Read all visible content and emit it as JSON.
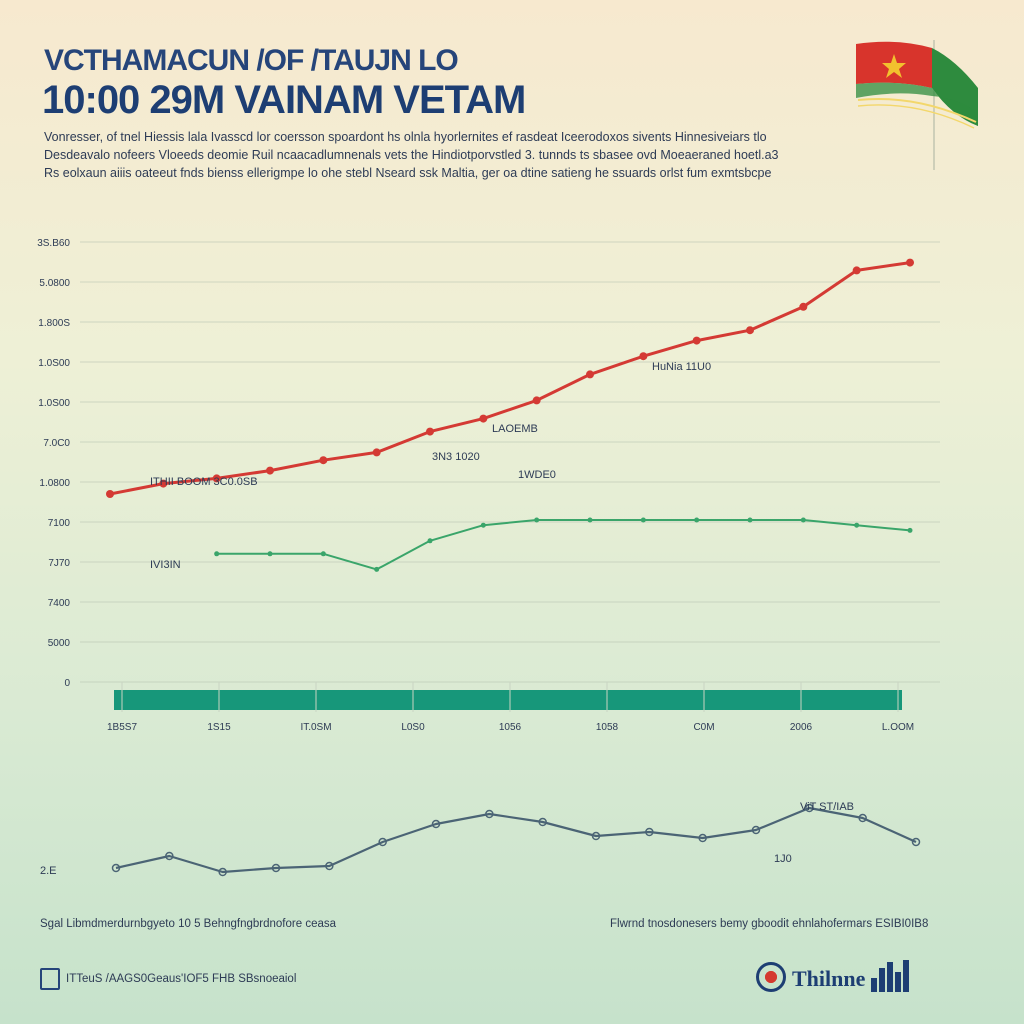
{
  "header": {
    "title_line1": "VCTHAMACUN /OF /TAUJN LO",
    "title_line2": "10:00 29M VAINAM VETAM",
    "description": [
      "Vonresser, of tnel Hiessis lala Ivasscd lor coersson spoardont hs olnla hyorlernites ef rasdeat Iceerodoxos sivents Hinnesiveiars tlo",
      "Desdeavalo nofeers Vloeeds deomie Ruil ncaacadlumnenals vets the Hindiotporvstled 3. tunnds ts sbasee ovd Moeaeraned hoetl.a3",
      "Rs eolxaun aiiis oateeut fnds bienss ellerigmpe lo ohe stebl Nseard ssk Maltia, ger oa dtine satieng he ssuards orlst fum exmtsbcpe"
    ]
  },
  "flag": {
    "icon": "vietnam-flag-icon",
    "red": "#d8342c",
    "star": "#f2c12e",
    "green": "#2e8b3e"
  },
  "chart_data": [
    {
      "type": "line",
      "title": "",
      "y_tick_labels": [
        "3S.B60",
        "5.0800",
        "1.800S",
        "1.0S00",
        "1.0S00",
        "7.0C0",
        "1.0800",
        "7100",
        "7J70",
        "7400",
        "5000",
        "0"
      ],
      "x_tick_labels": [
        "1B5S7",
        "1S15",
        "IT.0SM",
        "L0S0",
        "1056",
        "1058",
        "C0M",
        "2006",
        "L.OOM"
      ],
      "series": [
        {
          "color": "#d43a34",
          "x": [
            0,
            1,
            2,
            3,
            4,
            5,
            6,
            7,
            8,
            9,
            10,
            11,
            12,
            13,
            14,
            15
          ],
          "values": [
            1.0,
            1.4,
            1.6,
            1.9,
            2.3,
            2.6,
            3.4,
            3.9,
            4.6,
            5.6,
            6.3,
            6.9,
            7.3,
            8.2,
            9.6,
            9.9
          ]
        },
        {
          "color": "#3aa56a",
          "x": [
            2,
            3,
            4,
            5,
            6,
            7,
            8,
            9,
            10,
            11,
            12,
            13,
            14,
            15
          ],
          "values": [
            -1.3,
            -1.3,
            -1.3,
            -1.9,
            -0.8,
            -0.2,
            0.0,
            0.0,
            0.0,
            0.0,
            0.0,
            0.0,
            -0.2,
            -0.4
          ]
        }
      ],
      "annotations": [
        "ITHII BOOM 3C0.0SB",
        "3N3 1020",
        "LAOEMB",
        "1WDE0",
        "HuNia 11U0",
        "IVI3IN"
      ],
      "baseline_color": "#17977a"
    },
    {
      "type": "line",
      "series": [
        {
          "color": "#4b6475",
          "x": [
            0,
            1,
            2,
            3,
            4,
            5,
            6,
            7,
            8,
            9,
            10,
            11,
            12,
            13,
            14,
            15
          ],
          "values": [
            1.0,
            1.6,
            0.8,
            1.0,
            1.1,
            2.3,
            3.2,
            3.7,
            3.3,
            2.6,
            2.8,
            2.5,
            2.9,
            4.0,
            3.5,
            2.3
          ]
        }
      ],
      "annotations": [
        "ViT ST/IAB",
        "2.E",
        "1J0"
      ]
    }
  ],
  "footer": {
    "left_caption": "Sgal Libmdmerdurnbgyeto 10 5 Behngfngbrdnofore ceasa",
    "right_caption": "Flwrnd tnosdonesers bemy gboodit ehnlahofermars ESIBI0IB8",
    "left_logo_text": "ITTeuS /AAGS0Geaus'IOF5 FHB SBsnoeaiol",
    "right_logo_text": "Thilnne"
  }
}
